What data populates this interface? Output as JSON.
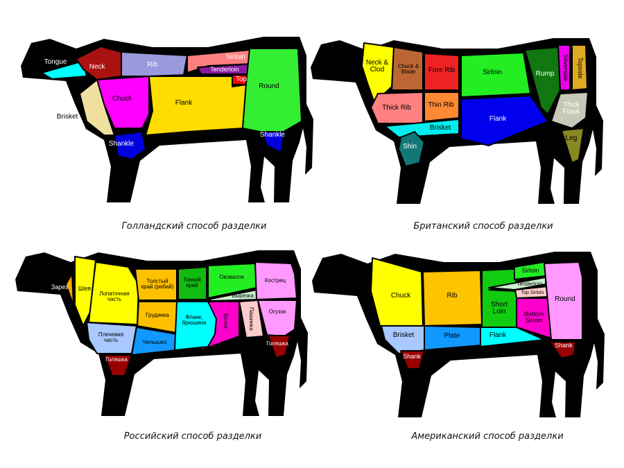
{
  "diagrams": [
    {
      "caption": "Голландский способ разделки",
      "cuts": [
        {
          "label": "Tongue",
          "color": "#00ffff"
        },
        {
          "label": "Neck",
          "color": "#aa1111"
        },
        {
          "label": "Rib",
          "color": "#9999dd"
        },
        {
          "label": "Sirloin",
          "color": "#ff7f7f"
        },
        {
          "label": "Tenderloin",
          "color": "#8a1aa0"
        },
        {
          "label": "Top",
          "color": "#ff0000"
        },
        {
          "label": "Flank",
          "color": "#ffdd00"
        },
        {
          "label": "Chuck",
          "color": "#ff00ff"
        },
        {
          "label": "Brisket",
          "color": "#f0e0a0"
        },
        {
          "label": "Shankle",
          "color": "#0000dd"
        },
        {
          "label": "Round",
          "color": "#33ee33"
        },
        {
          "label": "Shankle",
          "color": "#0000dd"
        }
      ]
    },
    {
      "caption": "Британский способ разделки",
      "cuts": [
        {
          "label": "Neck & Clod",
          "color": "#ffff00"
        },
        {
          "label": "Chuck & Blade",
          "color": "#bb6633"
        },
        {
          "label": "Fore Rib",
          "color": "#ee2222"
        },
        {
          "label": "Sirloin",
          "color": "#22ee22"
        },
        {
          "label": "Rump",
          "color": "#117711"
        },
        {
          "label": "Silverside",
          "color": "#ee00ee"
        },
        {
          "label": "Topside",
          "color": "#ddaa22"
        },
        {
          "label": "Thick Rib",
          "color": "#ff8080"
        },
        {
          "label": "Thin Rib",
          "color": "#ff8833"
        },
        {
          "label": "Brisket",
          "color": "#00eeee"
        },
        {
          "label": "Shin",
          "color": "#117777"
        },
        {
          "label": "Flank",
          "color": "#0000ee"
        },
        {
          "label": "Thick Flank",
          "color": "#c8c8b8"
        },
        {
          "label": "Leg",
          "color": "#888822"
        }
      ]
    },
    {
      "caption": "Российский способ разделки",
      "cuts": [
        {
          "label": "Зарез",
          "color": "#ffaa00"
        },
        {
          "label": "Шея",
          "color": "#ffff00"
        },
        {
          "label": "Лопаточная часть",
          "color": "#ffff00"
        },
        {
          "label": "Толстый край (рибай)",
          "color": "#ffc000"
        },
        {
          "label": "Грудинка",
          "color": "#ffc000"
        },
        {
          "label": "Плечевая часть",
          "color": "#a8c8ff"
        },
        {
          "label": "Челышко",
          "color": "#1199ff"
        },
        {
          "label": "Тонкий край",
          "color": "#11bb11"
        },
        {
          "label": "Оковалок",
          "color": "#22ee22"
        },
        {
          "label": "Вырезка",
          "color": "#ccf0cc"
        },
        {
          "label": "Кострец",
          "color": "#ff99ff"
        },
        {
          "label": "Бочок",
          "color": "#ff00cc"
        },
        {
          "label": "Фланк, брюшина",
          "color": "#00ffff"
        },
        {
          "label": "Пашинка",
          "color": "#ffcccc"
        },
        {
          "label": "Огузок",
          "color": "#ff99ff"
        },
        {
          "label": "Голяшка",
          "color": "#990000"
        },
        {
          "label": "Голяшка",
          "color": "#990000"
        }
      ]
    },
    {
      "caption": "Американский способ разделки",
      "cuts": [
        {
          "label": "Chuck",
          "color": "#ffff00"
        },
        {
          "label": "Rib",
          "color": "#ffc400"
        },
        {
          "label": "Short Loin",
          "color": "#11cc11"
        },
        {
          "label": "Sirloin",
          "color": "#22ee22"
        },
        {
          "label": "Tenderloin",
          "color": "#ccf0cc"
        },
        {
          "label": "Top Sirloin",
          "color": "#ffcccc"
        },
        {
          "label": "Bottom Sirloin",
          "color": "#ff00cc"
        },
        {
          "label": "Round",
          "color": "#ff99ff"
        },
        {
          "label": "Brisket",
          "color": "#a8c8ff"
        },
        {
          "label": "Plate",
          "color": "#1199ff"
        },
        {
          "label": "Flank",
          "color": "#00ffff"
        },
        {
          "label": "Shank",
          "color": "#990000"
        },
        {
          "label": "Shank",
          "color": "#990000"
        }
      ]
    }
  ]
}
